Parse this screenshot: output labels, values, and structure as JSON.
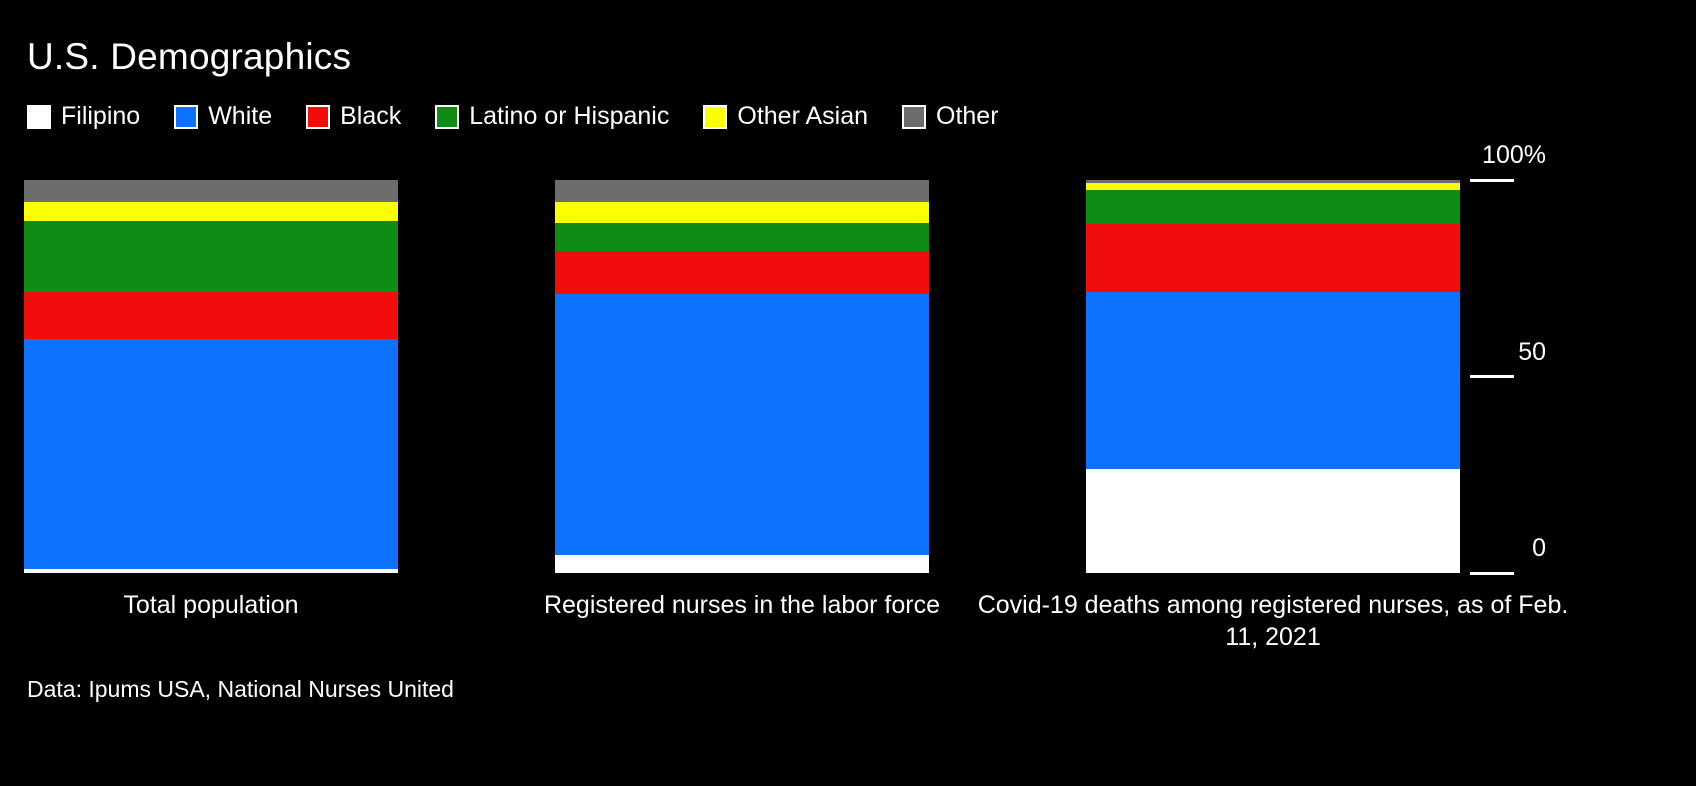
{
  "title": "U.S. Demographics",
  "source": "Data: Ipums USA, National Nurses United",
  "legend": [
    {
      "label": "Filipino",
      "color": "#ffffff"
    },
    {
      "label": "White",
      "color": "#0d73ff"
    },
    {
      "label": "Black",
      "color": "#f20d0d"
    },
    {
      "label": "Latino or Hispanic",
      "color": "#0e8c13"
    },
    {
      "label": "Other Asian",
      "color": "#fbff00"
    },
    {
      "label": "Other",
      "color": "#6d6d6d"
    }
  ],
  "axis": {
    "ticks": [
      {
        "label": "100%",
        "value": 100
      },
      {
        "label": "50",
        "value": 50
      },
      {
        "label": "0",
        "value": 0
      }
    ]
  },
  "chart_data": {
    "type": "bar",
    "stacked": true,
    "title": "U.S. Demographics",
    "categories": [
      "Total population",
      "Registered nurses in the labor force",
      "Covid-19 deaths among registered nurses, as of Feb. 11, 2021"
    ],
    "series": [
      {
        "name": "Filipino",
        "color": "#ffffff",
        "values": [
          1,
          4.5,
          26.4
        ]
      },
      {
        "name": "White",
        "color": "#0d73ff",
        "values": [
          58.5,
          66.5,
          45
        ]
      },
      {
        "name": "Black",
        "color": "#f20d0d",
        "values": [
          12,
          11,
          17.3
        ]
      },
      {
        "name": "Latino or Hispanic",
        "color": "#0e8c13",
        "values": [
          18,
          7,
          8.7
        ]
      },
      {
        "name": "Other Asian",
        "color": "#fbff00",
        "values": [
          4.8,
          5.5,
          1.8
        ]
      },
      {
        "name": "Other",
        "color": "#6d6d6d",
        "values": [
          5.7,
          5.5,
          0.8
        ]
      }
    ],
    "ylim": [
      0,
      100
    ],
    "ylabel": "",
    "xlabel": "",
    "grid": false,
    "legend_position": "top",
    "axis_labels_side": "right"
  }
}
